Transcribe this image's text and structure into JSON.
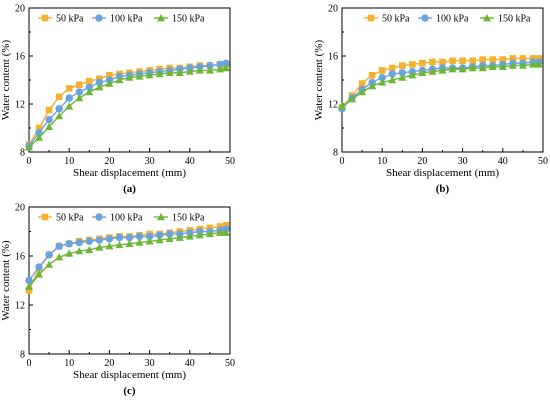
{
  "colors": {
    "s50": "#f4b02f",
    "s100": "#6aa3e1",
    "s150": "#6cb636",
    "axis": "#000000"
  },
  "chart_data": [
    {
      "type": "line",
      "panel_label": "(a)",
      "xlabel": "Shear displacement (mm)",
      "ylabel": "Water content (%)",
      "xlim": [
        0,
        50
      ],
      "ylim": [
        8,
        20
      ],
      "xticks": [
        0,
        10,
        20,
        30,
        40,
        50
      ],
      "yticks": [
        8,
        12,
        16,
        20
      ],
      "grid": false,
      "legend": "top-left",
      "x": [
        0,
        2.5,
        5,
        7.5,
        10,
        12.5,
        15,
        17.5,
        20,
        22.5,
        25,
        27.5,
        30,
        32.5,
        35,
        37.5,
        40,
        42.5,
        45,
        47.5,
        49
      ],
      "series": [
        {
          "name": "50 kPa",
          "marker": "square",
          "color_key": "s50",
          "values": [
            8.6,
            10.0,
            11.5,
            12.6,
            13.3,
            13.6,
            13.9,
            14.1,
            14.4,
            14.5,
            14.6,
            14.7,
            14.8,
            14.9,
            15.0,
            15.0,
            15.1,
            15.2,
            15.2,
            15.3,
            15.3
          ]
        },
        {
          "name": "100 kPa",
          "marker": "circle",
          "color_key": "s100",
          "values": [
            8.5,
            9.6,
            10.7,
            11.6,
            12.5,
            13.0,
            13.4,
            13.8,
            14.0,
            14.3,
            14.4,
            14.5,
            14.6,
            14.7,
            14.8,
            14.9,
            15.0,
            15.1,
            15.2,
            15.3,
            15.4
          ]
        },
        {
          "name": "150 kPa",
          "marker": "triangle",
          "color_key": "s150",
          "values": [
            8.4,
            9.2,
            10.1,
            11.0,
            11.8,
            12.5,
            13.0,
            13.4,
            13.7,
            14.0,
            14.2,
            14.3,
            14.4,
            14.5,
            14.6,
            14.6,
            14.7,
            14.8,
            14.8,
            14.9,
            15.0
          ]
        }
      ]
    },
    {
      "type": "line",
      "panel_label": "(b)",
      "xlabel": "Shear displacement (mm)",
      "ylabel": "Water content (%)",
      "xlim": [
        0,
        50
      ],
      "ylim": [
        8,
        20
      ],
      "xticks": [
        0,
        10,
        20,
        30,
        40,
        50
      ],
      "yticks": [
        8,
        12,
        16,
        20
      ],
      "grid": false,
      "legend": "top-right",
      "x": [
        0,
        2.5,
        5,
        7.5,
        10,
        12.5,
        15,
        17.5,
        20,
        22.5,
        25,
        27.5,
        30,
        32.5,
        35,
        37.5,
        40,
        42.5,
        45,
        47.5,
        49
      ],
      "series": [
        {
          "name": "50 kPa",
          "marker": "square",
          "color_key": "s50",
          "values": [
            11.7,
            12.7,
            13.7,
            14.4,
            14.8,
            15.0,
            15.2,
            15.3,
            15.4,
            15.5,
            15.5,
            15.6,
            15.6,
            15.6,
            15.7,
            15.7,
            15.7,
            15.8,
            15.8,
            15.8,
            15.8
          ]
        },
        {
          "name": "100 kPa",
          "marker": "circle",
          "color_key": "s100",
          "values": [
            11.6,
            12.5,
            13.2,
            13.8,
            14.2,
            14.5,
            14.6,
            14.7,
            14.8,
            14.9,
            15.0,
            15.0,
            15.0,
            15.1,
            15.2,
            15.2,
            15.3,
            15.4,
            15.4,
            15.5,
            15.5
          ]
        },
        {
          "name": "150 kPa",
          "marker": "triangle",
          "color_key": "s150",
          "values": [
            11.8,
            12.4,
            13.0,
            13.5,
            13.8,
            14.0,
            14.2,
            14.4,
            14.6,
            14.7,
            14.8,
            14.9,
            14.9,
            15.0,
            15.0,
            15.1,
            15.1,
            15.2,
            15.2,
            15.3,
            15.3
          ]
        }
      ]
    },
    {
      "type": "line",
      "panel_label": "(c)",
      "xlabel": "Shear displacement (mm)",
      "ylabel": "Water content (%)",
      "xlim": [
        0,
        50
      ],
      "ylim": [
        8,
        20
      ],
      "xticks": [
        0,
        10,
        20,
        30,
        40,
        50
      ],
      "yticks": [
        8,
        12,
        16,
        20
      ],
      "grid": false,
      "legend": "top-right",
      "x": [
        0,
        2.5,
        5,
        7.5,
        10,
        12.5,
        15,
        17.5,
        20,
        22.5,
        25,
        27.5,
        30,
        32.5,
        35,
        37.5,
        40,
        42.5,
        45,
        47.5,
        49
      ],
      "series": [
        {
          "name": "50 kPa",
          "marker": "square",
          "color_key": "s50",
          "values": [
            13.2,
            15.0,
            16.1,
            16.8,
            17.0,
            17.2,
            17.3,
            17.4,
            17.5,
            17.6,
            17.6,
            17.7,
            17.8,
            17.8,
            17.9,
            18.0,
            18.1,
            18.2,
            18.3,
            18.4,
            18.5
          ]
        },
        {
          "name": "100 kPa",
          "marker": "circle",
          "color_key": "s100",
          "values": [
            14.0,
            15.1,
            16.1,
            16.8,
            17.0,
            17.1,
            17.2,
            17.3,
            17.4,
            17.5,
            17.5,
            17.6,
            17.6,
            17.7,
            17.8,
            17.8,
            17.9,
            18.0,
            18.0,
            18.1,
            18.2
          ]
        },
        {
          "name": "150 kPa",
          "marker": "triangle",
          "color_key": "s150",
          "values": [
            13.5,
            14.5,
            15.3,
            15.9,
            16.2,
            16.4,
            16.5,
            16.7,
            16.8,
            16.9,
            17.0,
            17.1,
            17.2,
            17.3,
            17.4,
            17.5,
            17.6,
            17.7,
            17.8,
            17.9,
            17.9
          ]
        }
      ]
    }
  ]
}
